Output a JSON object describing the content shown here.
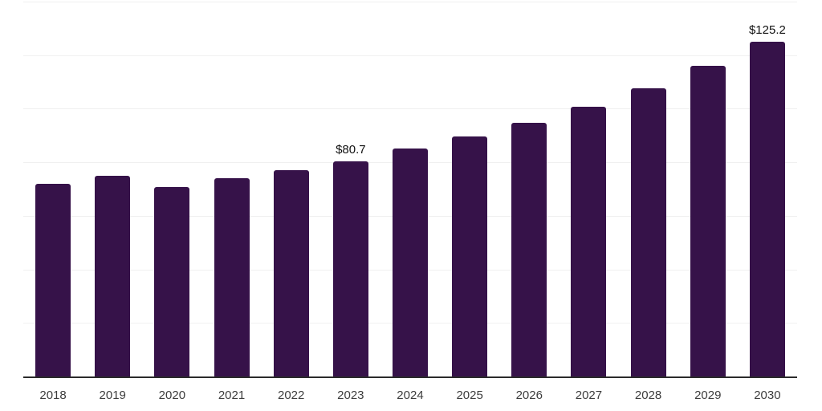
{
  "chart_data": {
    "type": "bar",
    "title": "",
    "xlabel": "",
    "ylabel": "",
    "categories": [
      "2018",
      "2019",
      "2020",
      "2021",
      "2022",
      "2023",
      "2024",
      "2025",
      "2026",
      "2027",
      "2028",
      "2029",
      "2030"
    ],
    "values": [
      72.4,
      75.4,
      71.1,
      74.3,
      77.4,
      80.7,
      85.4,
      89.9,
      95.1,
      101.0,
      107.8,
      116.3,
      125.2
    ],
    "labeled_values": [
      {
        "category": "2023",
        "text": "$80.7"
      },
      {
        "category": "2030",
        "text": "$125.2"
      }
    ],
    "ylim": [
      0,
      140
    ],
    "gridline_step": 20,
    "grid": "horizontal-only",
    "y_tick_labels_visible": false,
    "legend": "none",
    "bar_color": "#361249",
    "value_label_color": "#111111"
  },
  "style": {
    "background_color": "#ffffff",
    "gridline_color": "#f0f0f0",
    "axis_line_color": "#2b2b2b",
    "tick_label_color": "#3d3d3d"
  }
}
